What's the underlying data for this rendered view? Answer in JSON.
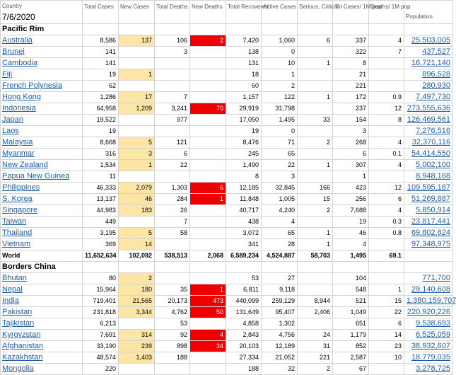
{
  "header": {
    "country_label": "Country",
    "date": "7/6/2020",
    "columns": [
      "Total Cases",
      "New Cases",
      "Total Deaths",
      "New Deaths",
      "Total Recovered",
      "Active Cases",
      "Serious, Critical",
      "Tot Cases/ 1M pop",
      "Deaths/ 1M pop",
      "Population"
    ]
  },
  "sections": [
    {
      "title": "Pacific Rim",
      "rows": [
        {
          "name": "Australia",
          "total_cases": "8,586",
          "new_cases": "137",
          "total_deaths": "106",
          "new_deaths": "2",
          "total_recovered": "7,420",
          "active_cases": "1,060",
          "serious": "6",
          "cases_per_1m": "337",
          "deaths_per_1m": "4",
          "population": "25,503,005"
        },
        {
          "name": "Brunei",
          "total_cases": "141",
          "new_cases": "",
          "total_deaths": "3",
          "new_deaths": "",
          "total_recovered": "138",
          "active_cases": "0",
          "serious": "",
          "cases_per_1m": "322",
          "deaths_per_1m": "7",
          "population": "437,527"
        },
        {
          "name": "Cambodia",
          "total_cases": "141",
          "new_cases": "",
          "total_deaths": "",
          "new_deaths": "",
          "total_recovered": "131",
          "active_cases": "10",
          "serious": "1",
          "cases_per_1m": "8",
          "deaths_per_1m": "",
          "population": "16,721,140"
        },
        {
          "name": "Fiji",
          "total_cases": "19",
          "new_cases": "1",
          "total_deaths": "",
          "new_deaths": "",
          "total_recovered": "18",
          "active_cases": "1",
          "serious": "",
          "cases_per_1m": "21",
          "deaths_per_1m": "",
          "population": "896,528"
        },
        {
          "name": "French Polynesia",
          "total_cases": "62",
          "new_cases": "",
          "total_deaths": "",
          "new_deaths": "",
          "total_recovered": "60",
          "active_cases": "2",
          "serious": "",
          "cases_per_1m": "221",
          "deaths_per_1m": "",
          "population": "280,930"
        },
        {
          "name": "Hong Kong",
          "total_cases": "1,286",
          "new_cases": "17",
          "total_deaths": "7",
          "new_deaths": "",
          "total_recovered": "1,157",
          "active_cases": "122",
          "serious": "1",
          "cases_per_1m": "172",
          "deaths_per_1m": "0.9",
          "population": "7,497,730"
        },
        {
          "name": "Indonesia",
          "total_cases": "64,958",
          "new_cases": "1,209",
          "total_deaths": "3,241",
          "new_deaths": "70",
          "total_recovered": "29,919",
          "active_cases": "31,798",
          "serious": "",
          "cases_per_1m": "237",
          "deaths_per_1m": "12",
          "population": "273,555,636"
        },
        {
          "name": "Japan",
          "total_cases": "19,522",
          "new_cases": "",
          "total_deaths": "977",
          "new_deaths": "",
          "total_recovered": "17,050",
          "active_cases": "1,495",
          "serious": "33",
          "cases_per_1m": "154",
          "deaths_per_1m": "8",
          "population": "126,469,561"
        },
        {
          "name": "Laos",
          "total_cases": "19",
          "new_cases": "",
          "total_deaths": "",
          "new_deaths": "",
          "total_recovered": "19",
          "active_cases": "0",
          "serious": "",
          "cases_per_1m": "3",
          "deaths_per_1m": "",
          "population": "7,276,516"
        },
        {
          "name": "Malaysia",
          "total_cases": "8,668",
          "new_cases": "5",
          "total_deaths": "121",
          "new_deaths": "",
          "total_recovered": "8,476",
          "active_cases": "71",
          "serious": "2",
          "cases_per_1m": "268",
          "deaths_per_1m": "4",
          "population": "32,370,116"
        },
        {
          "name": "Myanmar",
          "total_cases": "316",
          "new_cases": "3",
          "total_deaths": "6",
          "new_deaths": "",
          "total_recovered": "245",
          "active_cases": "65",
          "serious": "",
          "cases_per_1m": "6",
          "deaths_per_1m": "0.1",
          "population": "54,414,550"
        },
        {
          "name": "New Zealand",
          "total_cases": "1,534",
          "new_cases": "1",
          "total_deaths": "22",
          "new_deaths": "",
          "total_recovered": "1,490",
          "active_cases": "22",
          "serious": "1",
          "cases_per_1m": "307",
          "deaths_per_1m": "4",
          "population": "5,002,100"
        },
        {
          "name": "Papua New Guinea",
          "total_cases": "11",
          "new_cases": "",
          "total_deaths": "",
          "new_deaths": "",
          "total_recovered": "8",
          "active_cases": "3",
          "serious": "",
          "cases_per_1m": "1",
          "deaths_per_1m": "",
          "population": "8,948,168"
        },
        {
          "name": "Philippines",
          "total_cases": "46,333",
          "new_cases": "2,079",
          "total_deaths": "1,303",
          "new_deaths": "6",
          "total_recovered": "12,185",
          "active_cases": "32,845",
          "serious": "166",
          "cases_per_1m": "423",
          "deaths_per_1m": "12",
          "population": "109,595,187"
        },
        {
          "name": "S. Korea",
          "total_cases": "13,137",
          "new_cases": "46",
          "total_deaths": "284",
          "new_deaths": "1",
          "total_recovered": "11,848",
          "active_cases": "1,005",
          "serious": "15",
          "cases_per_1m": "256",
          "deaths_per_1m": "6",
          "population": "51,269,887"
        },
        {
          "name": "Singapore",
          "total_cases": "44,983",
          "new_cases": "183",
          "total_deaths": "26",
          "new_deaths": "",
          "total_recovered": "40,717",
          "active_cases": "4,240",
          "serious": "2",
          "cases_per_1m": "7,688",
          "deaths_per_1m": "4",
          "population": "5,850,914"
        },
        {
          "name": "Taiwan",
          "total_cases": "449",
          "new_cases": "",
          "total_deaths": "7",
          "new_deaths": "",
          "total_recovered": "438",
          "active_cases": "4",
          "serious": "",
          "cases_per_1m": "19",
          "deaths_per_1m": "0.3",
          "population": "23,817,441"
        },
        {
          "name": "Thailand",
          "total_cases": "3,195",
          "new_cases": "5",
          "total_deaths": "58",
          "new_deaths": "",
          "total_recovered": "3,072",
          "active_cases": "65",
          "serious": "1",
          "cases_per_1m": "46",
          "deaths_per_1m": "0.8",
          "population": "69,802,624"
        },
        {
          "name": "Vietnam",
          "total_cases": "369",
          "new_cases": "14",
          "total_deaths": "",
          "new_deaths": "",
          "total_recovered": "341",
          "active_cases": "28",
          "serious": "1",
          "cases_per_1m": "4",
          "deaths_per_1m": "",
          "population": "97,348,975"
        }
      ],
      "world": {
        "name": "World",
        "total_cases": "11,652,634",
        "new_cases": "102,092",
        "total_deaths": "538,513",
        "new_deaths": "2,068",
        "total_recovered": "6,589,234",
        "active_cases": "4,524,887",
        "serious": "58,703",
        "cases_per_1m": "1,495",
        "deaths_per_1m": "69.1",
        "population": ""
      }
    },
    {
      "title": "Borders China",
      "rows": [
        {
          "name": "Bhutan",
          "total_cases": "80",
          "new_cases": "2",
          "total_deaths": "",
          "new_deaths": "",
          "total_recovered": "53",
          "active_cases": "27",
          "serious": "",
          "cases_per_1m": "104",
          "deaths_per_1m": "",
          "population": "771,700"
        },
        {
          "name": "Nepal",
          "total_cases": "15,964",
          "new_cases": "180",
          "total_deaths": "35",
          "new_deaths": "1",
          "total_recovered": "6,811",
          "active_cases": "9,118",
          "serious": "",
          "cases_per_1m": "548",
          "deaths_per_1m": "1",
          "population": "29,140,608"
        },
        {
          "name": "India",
          "total_cases": "719,401",
          "new_cases": "21,565",
          "total_deaths": "20,173",
          "new_deaths": "473",
          "total_recovered": "440,099",
          "active_cases": "259,129",
          "serious": "8,944",
          "cases_per_1m": "521",
          "deaths_per_1m": "15",
          "population": "1,380,159,707"
        },
        {
          "name": "Pakistan",
          "total_cases": "231,818",
          "new_cases": "3,344",
          "total_deaths": "4,762",
          "new_deaths": "50",
          "total_recovered": "131,649",
          "active_cases": "95,407",
          "serious": "2,406",
          "cases_per_1m": "1,049",
          "deaths_per_1m": "22",
          "population": "220,920,226"
        },
        {
          "name": "Tajikistan",
          "total_cases": "6,213",
          "new_cases": "",
          "total_deaths": "53",
          "new_deaths": "",
          "total_recovered": "4,858",
          "active_cases": "1,302",
          "serious": "",
          "cases_per_1m": "651",
          "deaths_per_1m": "6",
          "population": "9,538,693"
        },
        {
          "name": "Kyrgyzstan",
          "total_cases": "7,691",
          "new_cases": "314",
          "total_deaths": "92",
          "new_deaths": "4",
          "total_recovered": "2,843",
          "active_cases": "4,756",
          "serious": "24",
          "cases_per_1m": "1,179",
          "deaths_per_1m": "14",
          "population": "6,525,059"
        },
        {
          "name": "Afghanistan",
          "total_cases": "33,190",
          "new_cases": "239",
          "total_deaths": "898",
          "new_deaths": "34",
          "total_recovered": "20,103",
          "active_cases": "12,189",
          "serious": "31",
          "cases_per_1m": "852",
          "deaths_per_1m": "23",
          "population": "38,932,607"
        },
        {
          "name": "Kazakhstan",
          "total_cases": "48,574",
          "new_cases": "1,403",
          "total_deaths": "188",
          "new_deaths": "",
          "total_recovered": "27,334",
          "active_cases": "21,052",
          "serious": "221",
          "cases_per_1m": "2,587",
          "deaths_per_1m": "10",
          "population": "18,779,035"
        },
        {
          "name": "Mongolia",
          "total_cases": "220",
          "new_cases": "",
          "total_deaths": "",
          "new_deaths": "",
          "total_recovered": "188",
          "active_cases": "32",
          "serious": "2",
          "cases_per_1m": "67",
          "deaths_per_1m": "",
          "population": "3,278,725"
        }
      ]
    }
  ],
  "colors": {
    "new_cases_highlight": "#fbe6a6",
    "new_deaths_highlight": "#ee0000",
    "link": "#1f5fa8",
    "grid": "#d4d4d4"
  }
}
